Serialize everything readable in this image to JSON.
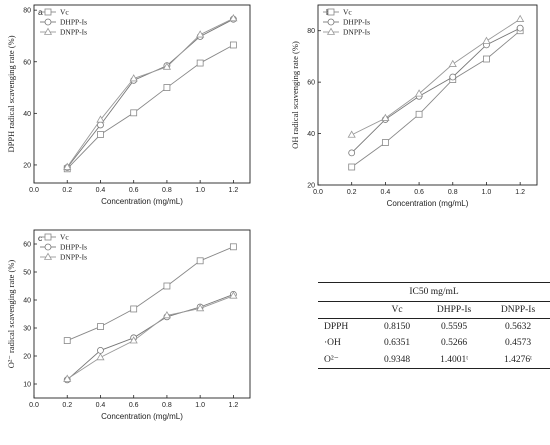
{
  "chart_data": [
    {
      "panel": "a",
      "type": "line",
      "ylabel": "DPPH radical scavenging rate (%)",
      "xlabel": "Concentration (mg/mL)",
      "xlim": [
        0.0,
        1.3
      ],
      "ylim": [
        13,
        82
      ],
      "xticks": [
        "0.0",
        "0.2",
        "0.4",
        "0.6",
        "0.8",
        "1.0",
        "1.2"
      ],
      "yticks": [
        "20",
        "40",
        "60",
        "80"
      ],
      "x": [
        0.2,
        0.4,
        0.6,
        0.8,
        1.0,
        1.2
      ],
      "series": [
        {
          "name": "Vc",
          "marker": "square",
          "color": "#888888",
          "values": [
            18.5,
            31.8,
            40.2,
            50.0,
            59.5,
            66.5
          ]
        },
        {
          "name": "DHPP-Is",
          "marker": "circle",
          "color": "#777777",
          "values": [
            19.0,
            35.5,
            52.8,
            58.5,
            69.8,
            76.5
          ]
        },
        {
          "name": "DNPP-Is",
          "marker": "triangle",
          "color": "#999999",
          "values": [
            19.2,
            37.5,
            53.5,
            58.0,
            70.5,
            76.8
          ]
        }
      ]
    },
    {
      "panel": "b",
      "type": "line",
      "ylabel": "OH radical scavenging rate (%)",
      "xlabel": "Concentration (mg/mL)",
      "xlim": [
        0.0,
        1.3
      ],
      "ylim": [
        20,
        90
      ],
      "xticks": [
        "0.0",
        "0.2",
        "0.4",
        "0.6",
        "0.8",
        "1.0",
        "1.2"
      ],
      "yticks": [
        "20",
        "40",
        "60",
        "80"
      ],
      "x": [
        0.2,
        0.4,
        0.6,
        0.8,
        1.0,
        1.2
      ],
      "series": [
        {
          "name": "Vc",
          "marker": "square",
          "color": "#888888",
          "values": [
            27.0,
            36.5,
            47.5,
            61.0,
            69.0,
            80.0
          ]
        },
        {
          "name": "DHPP-Is",
          "marker": "circle",
          "color": "#777777",
          "values": [
            32.5,
            45.5,
            54.5,
            62.0,
            74.5,
            81.0
          ]
        },
        {
          "name": "DNPP-Is",
          "marker": "triangle",
          "color": "#999999",
          "values": [
            39.5,
            46.0,
            55.5,
            67.0,
            76.0,
            84.5
          ]
        }
      ]
    },
    {
      "panel": "c",
      "type": "line",
      "ylabel": "O²⁻ radical scavenging rate (%)",
      "xlabel": "Concentration (mg/mL)",
      "xlim": [
        0.0,
        1.3
      ],
      "ylim": [
        5,
        65
      ],
      "xticks": [
        "0.0",
        "0.2",
        "0.4",
        "0.6",
        "0.8",
        "1.0",
        "1.2"
      ],
      "yticks": [
        "10",
        "20",
        "30",
        "40",
        "50",
        "60"
      ],
      "x": [
        0.2,
        0.4,
        0.6,
        0.8,
        1.0,
        1.2
      ],
      "series": [
        {
          "name": "Vc",
          "marker": "square",
          "color": "#888888",
          "values": [
            25.5,
            30.5,
            36.8,
            45.0,
            54.0,
            59.0
          ]
        },
        {
          "name": "DHPP-Is",
          "marker": "circle",
          "color": "#777777",
          "values": [
            11.5,
            22.0,
            26.5,
            34.0,
            37.5,
            42.0
          ]
        },
        {
          "name": "DNPP-Is",
          "marker": "triangle",
          "color": "#999999",
          "values": [
            11.8,
            19.5,
            25.5,
            34.5,
            37.0,
            41.5
          ]
        }
      ]
    },
    {
      "type": "table",
      "title": "IC50 mg/mL",
      "columns": [
        "",
        "Vc",
        "DHPP-Is",
        "DNPP-Is"
      ],
      "rows": [
        [
          "DPPH",
          "0.8150",
          "0.5595",
          "0.5632"
        ],
        [
          "·OH",
          "0.6351",
          "0.5266",
          "0.4573"
        ],
        [
          "O²⁻",
          "0.9348",
          "1.4001ᵗ",
          "1.4276ᵗ"
        ]
      ]
    }
  ]
}
